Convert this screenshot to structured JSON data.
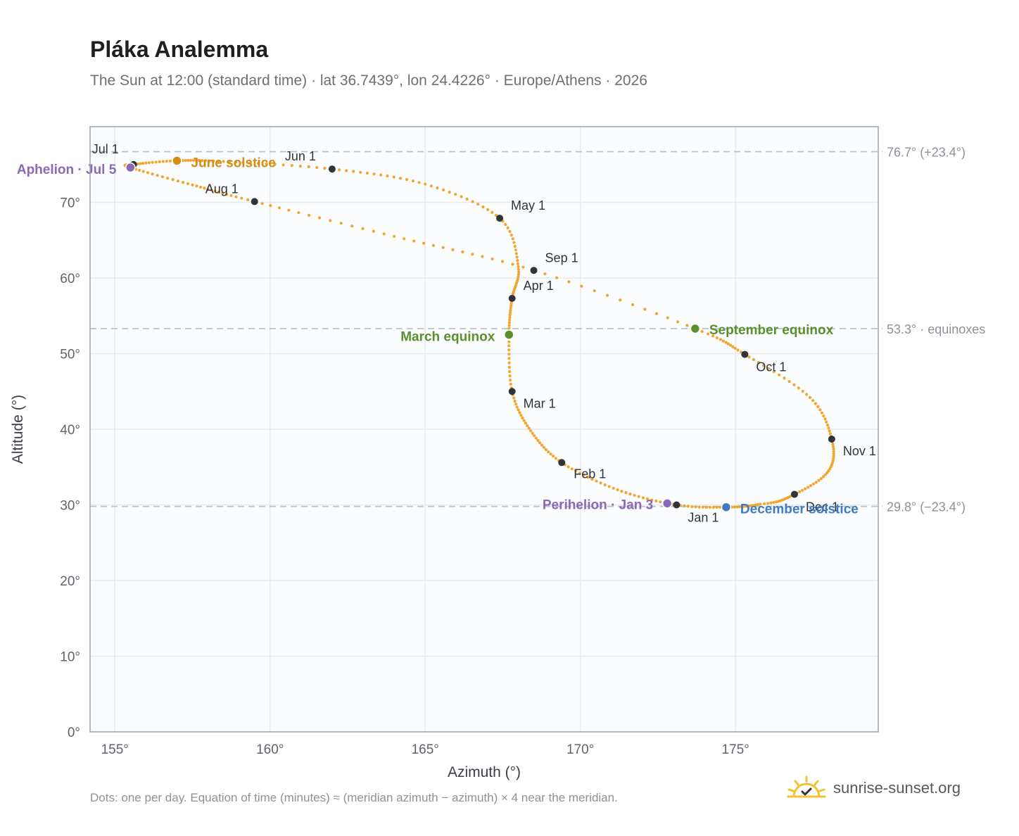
{
  "header": {
    "title": "Pláka Analemma",
    "subtitle": "The Sun at 12:00 (standard time) · lat 36.7439°, lon 24.4226° · Europe/Athens · 2026"
  },
  "footer": {
    "note": "Dots: one per day. Equation of time (minutes) ≈ (meridian azimuth − azimuth) × 4 near the meridian.",
    "brand": "sunrise-sunset.org",
    "brand_icon": "sun-logo-icon"
  },
  "colors": {
    "curve": "#f2a630",
    "month_dot": "#2f333a",
    "solstice_june": "#d18f13",
    "equinox": "#5a8f2e",
    "aphelion_perihelion": "#8c68b8",
    "solstice_december": "#3b7cc4",
    "reference_line": "#b8c2cc",
    "plot_bg": "#fbfcfd",
    "grid": "#e6eaee",
    "frame": "#9aa5b1"
  },
  "chart_data": {
    "type": "scatter",
    "xlabel": "Azimuth (°)",
    "ylabel": "Altitude (°)",
    "xlim": [
      154.2,
      179.6
    ],
    "ylim": [
      0,
      80
    ],
    "xticks": [
      155,
      160,
      165,
      170,
      175
    ],
    "yticks": [
      0,
      10,
      20,
      30,
      40,
      50,
      60,
      70
    ],
    "x_tick_labels": [
      "155°",
      "160°",
      "165°",
      "170°",
      "175°"
    ],
    "y_tick_labels": [
      "0°",
      "10°",
      "20°",
      "30°",
      "40°",
      "50°",
      "60°",
      "70°"
    ],
    "grid": true,
    "reference_lines": [
      {
        "y": 76.7,
        "label": "76.7° (+23.4°)"
      },
      {
        "y": 53.3,
        "label": "53.3° · equinoxes"
      },
      {
        "y": 29.8,
        "label": "29.8° (−23.4°)"
      }
    ],
    "month_markers": [
      {
        "label": "Jan 1",
        "x": 173.1,
        "y": 30.0
      },
      {
        "label": "Feb 1",
        "x": 169.4,
        "y": 35.6
      },
      {
        "label": "Mar 1",
        "x": 167.8,
        "y": 45.0
      },
      {
        "label": "Apr 1",
        "x": 167.8,
        "y": 57.3
      },
      {
        "label": "May 1",
        "x": 167.4,
        "y": 67.9
      },
      {
        "label": "Jun 1",
        "x": 162.0,
        "y": 74.4
      },
      {
        "label": "Jul 1",
        "x": 155.6,
        "y": 75.0
      },
      {
        "label": "Aug 1",
        "x": 159.5,
        "y": 70.1
      },
      {
        "label": "Sep 1",
        "x": 168.5,
        "y": 61.0
      },
      {
        "label": "Oct 1",
        "x": 175.3,
        "y": 49.9
      },
      {
        "label": "Nov 1",
        "x": 178.1,
        "y": 38.7
      },
      {
        "label": "Dec 1",
        "x": 176.9,
        "y": 31.4
      }
    ],
    "events": [
      {
        "label": "June solstice",
        "x": 157.0,
        "y": 75.5,
        "color_key": "solstice_june"
      },
      {
        "label": "Aphelion · Jul 5",
        "x": 155.5,
        "y": 74.6,
        "color_key": "aphelion_perihelion"
      },
      {
        "label": "March equinox",
        "x": 167.7,
        "y": 52.5,
        "color_key": "equinox"
      },
      {
        "label": "September equinox",
        "x": 173.7,
        "y": 53.3,
        "color_key": "equinox"
      },
      {
        "label": "Perihelion · Jan 3",
        "x": 172.8,
        "y": 30.2,
        "color_key": "aphelion_perihelion"
      },
      {
        "label": "December solstice",
        "x": 174.7,
        "y": 29.7,
        "color_key": "solstice_december"
      }
    ],
    "curve_path": [
      [
        174.7,
        29.7
      ],
      [
        173.1,
        30.0
      ],
      [
        171.2,
        32.0
      ],
      [
        169.4,
        35.6
      ],
      [
        168.4,
        39.8
      ],
      [
        167.8,
        45.0
      ],
      [
        167.7,
        52.5
      ],
      [
        167.8,
        57.3
      ],
      [
        168.0,
        61.5
      ],
      [
        167.4,
        67.9
      ],
      [
        165.0,
        72.4
      ],
      [
        162.0,
        74.4
      ],
      [
        158.5,
        75.4
      ],
      [
        157.0,
        75.5
      ],
      [
        155.6,
        75.0
      ],
      [
        155.5,
        74.6
      ],
      [
        157.5,
        72.3
      ],
      [
        159.5,
        70.1
      ],
      [
        164.0,
        65.5
      ],
      [
        168.5,
        61.0
      ],
      [
        173.7,
        53.3
      ],
      [
        175.3,
        49.9
      ],
      [
        177.4,
        44.2
      ],
      [
        178.1,
        38.7
      ],
      [
        178.0,
        34.5
      ],
      [
        176.9,
        31.4
      ],
      [
        175.8,
        30.1
      ],
      [
        174.7,
        29.7
      ]
    ]
  }
}
